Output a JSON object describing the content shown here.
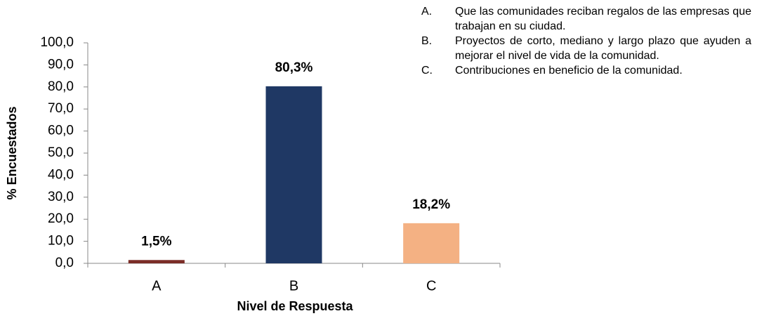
{
  "chart_data": {
    "type": "bar",
    "categories": [
      "A",
      "B",
      "C"
    ],
    "values": [
      1.5,
      80.3,
      18.2
    ],
    "value_labels": [
      "1,5%",
      "80,3%",
      "18,2%"
    ],
    "colors": [
      "#7b2c27",
      "#1f3864",
      "#f4b183"
    ],
    "ylim": [
      0,
      100
    ],
    "yticks": [
      {
        "value": 0,
        "label": "0,0"
      },
      {
        "value": 10,
        "label": "10,0"
      },
      {
        "value": 20,
        "label": "20,0"
      },
      {
        "value": 30,
        "label": "30,0"
      },
      {
        "value": 40,
        "label": "40,0"
      },
      {
        "value": 50,
        "label": "50,0"
      },
      {
        "value": 60,
        "label": "60,0"
      },
      {
        "value": 70,
        "label": "70,0"
      },
      {
        "value": 80,
        "label": "80,0"
      },
      {
        "value": 90,
        "label": "90,0"
      },
      {
        "value": 100,
        "label": "100,0"
      }
    ],
    "y_label": "% Encuestados",
    "x_label": "Nivel de Respuesta",
    "grid": false,
    "annotations": [
      {
        "label": "A.",
        "text": "Que las comunidades reciban regalos de las empresas que trabajan en su ciudad."
      },
      {
        "label": "B.",
        "text": "Proyectos de corto, mediano y largo plazo que ayuden a mejorar el nivel de vida de la comunidad."
      },
      {
        "label": "C.",
        "text": "Contribuciones en beneficio de la comunidad."
      }
    ]
  }
}
